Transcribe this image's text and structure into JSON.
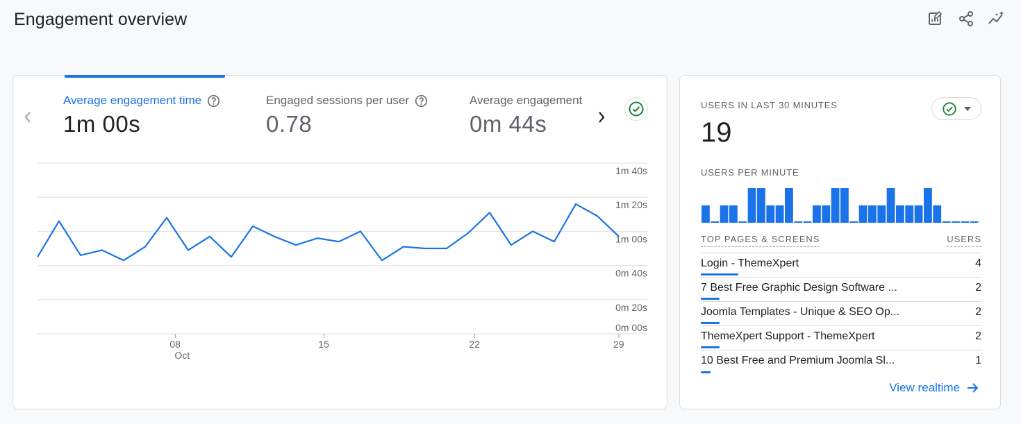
{
  "header": {
    "title": "Engagement overview"
  },
  "metrics": [
    {
      "label": "Average engagement time",
      "value": "1m 00s",
      "active": true
    },
    {
      "label": "Engaged sessions per user",
      "value": "0.78",
      "active": false
    },
    {
      "label": "Average engagement",
      "value": "0m 44s",
      "active": false
    }
  ],
  "chart_data": {
    "type": "line",
    "x_tick_labels": [
      "08",
      "15",
      "22",
      "29"
    ],
    "x_month_label": "Oct",
    "y_tick_labels": [
      "1m 40s",
      "1m 20s",
      "1m 00s",
      "0m 40s",
      "0m 20s",
      "0m 00s"
    ],
    "ylim": [
      0,
      100
    ],
    "y_unit": "seconds",
    "grid": true,
    "series": [
      {
        "color": "#1a73e8",
        "values": [
          45,
          66,
          46,
          49,
          43,
          51,
          68,
          49,
          57,
          45,
          63,
          57,
          52,
          56,
          54,
          60,
          43,
          51,
          50,
          50,
          59,
          71,
          52,
          60,
          54,
          76,
          69,
          57
        ]
      }
    ]
  },
  "realtime": {
    "users_label": "USERS IN LAST 30 MINUTES",
    "users_count": "19",
    "per_minute_label": "USERS PER MINUTE",
    "per_minute": [
      1,
      0,
      1,
      1,
      0,
      2,
      2,
      1,
      1,
      2,
      0,
      0,
      1,
      1,
      2,
      2,
      0,
      1,
      1,
      1,
      2,
      1,
      1,
      1,
      2,
      1,
      0,
      0,
      0,
      0
    ],
    "top_pages_label": "TOP PAGES & SCREENS",
    "users_col_label": "USERS",
    "pages": [
      {
        "name": "Login - ThemeXpert",
        "users": "4",
        "share": 1.0
      },
      {
        "name": "7 Best Free Graphic Design Software ...",
        "users": "2",
        "share": 0.5
      },
      {
        "name": "Joomla Templates - Unique & SEO Op...",
        "users": "2",
        "share": 0.5
      },
      {
        "name": "ThemeXpert Support - ThemeXpert",
        "users": "2",
        "share": 0.5
      },
      {
        "name": "10 Best Free and Premium Joomla Sl...",
        "users": "1",
        "share": 0.25
      }
    ],
    "view_realtime_label": "View realtime"
  },
  "colors": {
    "accent": "#1a73e8",
    "success": "#188038",
    "grid": "#e0e0e0",
    "muted": "#5f6368"
  },
  "icons": [
    "edit-report-icon",
    "share-icon",
    "insights-icon",
    "help-icon",
    "check-circle-icon",
    "chevron-left-icon",
    "chevron-right-icon",
    "dropdown-arrow-icon",
    "arrow-right-icon"
  ]
}
